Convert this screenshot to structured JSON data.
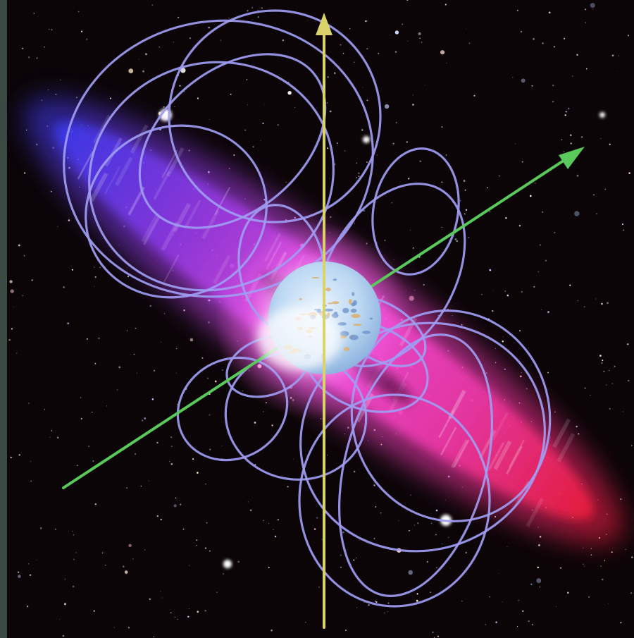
{
  "scene": {
    "subject": "pulsar",
    "colors": {
      "page_background": "#1a1718",
      "left_border": "#3b4a42",
      "space_background": "#0b0507",
      "beam_blue": "#4a3cff",
      "beam_violet": "#a43cf0",
      "beam_magenta": "#ff3ce6",
      "beam_red": "#ff1e3c",
      "field_lines": "#9f9cf2",
      "rotation_axis": "#d9d36a",
      "magnetic_axis": "#58c95a",
      "star_surface": "#bcd8f2",
      "star_spots": "#e0a85a"
    },
    "elements": {
      "neutron_star": "sphere",
      "rotation_axis_arrow": "arrow-up-icon",
      "magnetic_axis_arrow": "arrow-upper-right-icon",
      "radiation_beam": "glow-cone",
      "magnetic_field_lines": "loops"
    }
  }
}
